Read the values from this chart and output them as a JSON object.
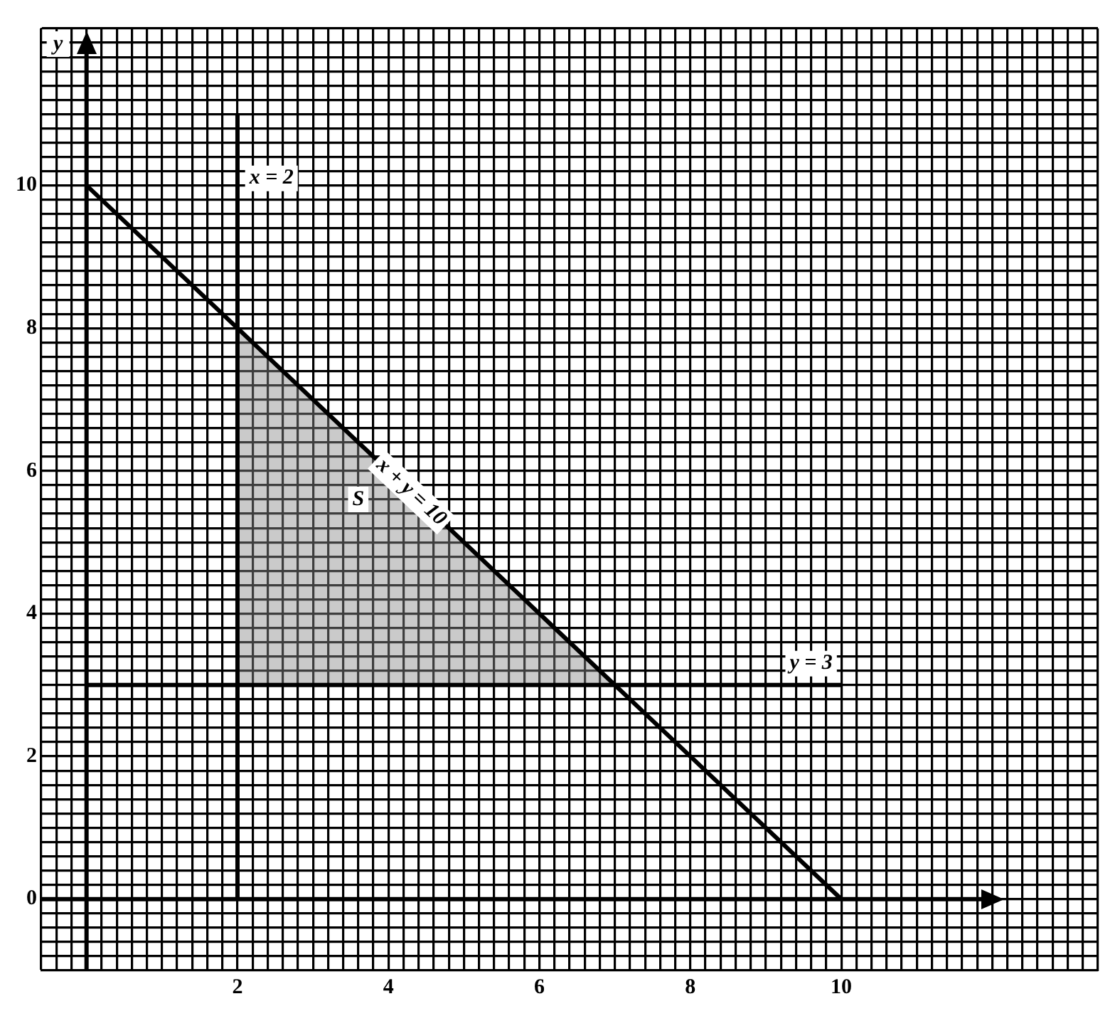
{
  "chart_data": {
    "type": "line",
    "ylabel": "y",
    "series": [
      {
        "color": "#000000",
        "x": [
          2,
          2
        ],
        "values": [
          0,
          11
        ]
      },
      {
        "color": "#000000",
        "x": [
          0,
          10
        ],
        "values": [
          10,
          0
        ]
      },
      {
        "color": "#000000",
        "x": [
          0,
          10
        ],
        "values": [
          3,
          3
        ]
      },
      {
        "type": "area",
        "color": "#8a8a8a",
        "x": [
          2,
          2,
          7,
          2
        ],
        "values": [
          3,
          8,
          3,
          3
        ]
      }
    ],
    "annotations": [
      {
        "text": "x = 2",
        "x": 2.45,
        "y": 10.1
      },
      {
        "text": "x + y = 10",
        "x": 4.3,
        "y": 5.7
      },
      {
        "text": "y = 3",
        "x": 9.6,
        "y": 3.3
      },
      {
        "text": "S",
        "x": 3.6,
        "y": 5.6
      }
    ],
    "xlim": [
      -0.6,
      13.4
    ],
    "ylim": [
      -1,
      12.2
    ],
    "xticks": [
      {
        "value": -0.6,
        "label": null
      },
      {
        "value": -0.4,
        "label": null
      },
      {
        "value": -0.2,
        "label": null
      },
      {
        "value": 0,
        "label": null
      },
      {
        "value": 0.2,
        "label": null
      },
      {
        "value": 0.4,
        "label": null
      },
      {
        "value": 0.6,
        "label": null
      },
      {
        "value": 0.8,
        "label": null
      },
      {
        "value": 1,
        "label": null
      },
      {
        "value": 1.2,
        "label": null
      },
      {
        "value": 1.4,
        "label": null
      },
      {
        "value": 1.6,
        "label": null
      },
      {
        "value": 1.8,
        "label": null
      },
      2,
      {
        "value": 2.2,
        "label": null
      },
      {
        "value": 2.4,
        "label": null
      },
      {
        "value": 2.6,
        "label": null
      },
      {
        "value": 2.8,
        "label": null
      },
      {
        "value": 3,
        "label": null
      },
      {
        "value": 3.2,
        "label": null
      },
      {
        "value": 3.4,
        "label": null
      },
      {
        "value": 3.6,
        "label": null
      },
      {
        "value": 3.8,
        "label": null
      },
      4,
      {
        "value": 4.2,
        "label": null
      },
      {
        "value": 4.4,
        "label": null
      },
      {
        "value": 4.6,
        "label": null
      },
      {
        "value": 4.8,
        "label": null
      },
      {
        "value": 5,
        "label": null
      },
      {
        "value": 5.2,
        "label": null
      },
      {
        "value": 5.4,
        "label": null
      },
      {
        "value": 5.6,
        "label": null
      },
      {
        "value": 5.8,
        "label": null
      },
      6,
      {
        "value": 6.2,
        "label": null
      },
      {
        "value": 6.4,
        "label": null
      },
      {
        "value": 6.6,
        "label": null
      },
      {
        "value": 6.8,
        "label": null
      },
      {
        "value": 7,
        "label": null
      },
      {
        "value": 7.2,
        "label": null
      },
      {
        "value": 7.4,
        "label": null
      },
      {
        "value": 7.6,
        "label": null
      },
      {
        "value": 7.8,
        "label": null
      },
      8,
      {
        "value": 8.2,
        "label": null
      },
      {
        "value": 8.4,
        "label": null
      },
      {
        "value": 8.6,
        "label": null
      },
      {
        "value": 8.8,
        "label": null
      },
      {
        "value": 9,
        "label": null
      },
      {
        "value": 9.2,
        "label": null
      },
      {
        "value": 9.4,
        "label": null
      },
      {
        "value": 9.6,
        "label": null
      },
      {
        "value": 9.8,
        "label": null
      },
      10,
      {
        "value": 10.2,
        "label": null
      },
      {
        "value": 10.4,
        "label": null
      },
      {
        "value": 10.6,
        "label": null
      },
      {
        "value": 10.8,
        "label": null
      },
      {
        "value": 11,
        "label": null
      },
      {
        "value": 11.2,
        "label": null
      },
      {
        "value": 11.4,
        "label": null
      },
      {
        "value": 11.6,
        "label": null
      },
      {
        "value": 11.8,
        "label": null
      },
      {
        "value": 12,
        "label": null
      },
      {
        "value": 12.2,
        "label": null
      },
      {
        "value": 12.4,
        "label": null
      },
      {
        "value": 12.6,
        "label": null
      },
      {
        "value": 12.8,
        "label": null
      },
      {
        "value": 13,
        "label": null
      },
      {
        "value": 13.2,
        "label": null
      },
      {
        "value": 13.4,
        "label": null
      }
    ],
    "yticks": [
      {
        "value": -1,
        "label": null
      },
      {
        "value": -0.8,
        "label": null
      },
      {
        "value": -0.6,
        "label": null
      },
      {
        "value": -0.4,
        "label": null
      },
      {
        "value": -0.2,
        "label": null
      },
      0,
      {
        "value": 0.2,
        "label": null
      },
      {
        "value": 0.4,
        "label": null
      },
      {
        "value": 0.6,
        "label": null
      },
      {
        "value": 0.8,
        "label": null
      },
      {
        "value": 1,
        "label": null
      },
      {
        "value": 1.2,
        "label": null
      },
      {
        "value": 1.4,
        "label": null
      },
      {
        "value": 1.6,
        "label": null
      },
      {
        "value": 1.8,
        "label": null
      },
      2,
      {
        "value": 2.2,
        "label": null
      },
      {
        "value": 2.4,
        "label": null
      },
      {
        "value": 2.6,
        "label": null
      },
      {
        "value": 2.8,
        "label": null
      },
      {
        "value": 3,
        "label": null
      },
      {
        "value": 3.2,
        "label": null
      },
      {
        "value": 3.4,
        "label": null
      },
      {
        "value": 3.6,
        "label": null
      },
      {
        "value": 3.8,
        "label": null
      },
      4,
      {
        "value": 4.2,
        "label": null
      },
      {
        "value": 4.4,
        "label": null
      },
      {
        "value": 4.6,
        "label": null
      },
      {
        "value": 4.8,
        "label": null
      },
      {
        "value": 5,
        "label": null
      },
      {
        "value": 5.2,
        "label": null
      },
      {
        "value": 5.4,
        "label": null
      },
      {
        "value": 5.6,
        "label": null
      },
      {
        "value": 5.8,
        "label": null
      },
      6,
      {
        "value": 6.2,
        "label": null
      },
      {
        "value": 6.4,
        "label": null
      },
      {
        "value": 6.6,
        "label": null
      },
      {
        "value": 6.8,
        "label": null
      },
      {
        "value": 7,
        "label": null
      },
      {
        "value": 7.2,
        "label": null
      },
      {
        "value": 7.4,
        "label": null
      },
      {
        "value": 7.6,
        "label": null
      },
      {
        "value": 7.8,
        "label": null
      },
      8,
      {
        "value": 8.2,
        "label": null
      },
      {
        "value": 8.4,
        "label": null
      },
      {
        "value": 8.6,
        "label": null
      },
      {
        "value": 8.8,
        "label": null
      },
      {
        "value": 9,
        "label": null
      },
      {
        "value": 9.2,
        "label": null
      },
      {
        "value": 9.4,
        "label": null
      },
      {
        "value": 9.6,
        "label": null
      },
      {
        "value": 9.8,
        "label": null
      },
      10,
      {
        "value": 10.2,
        "label": null
      },
      {
        "value": 10.4,
        "label": null
      },
      {
        "value": 10.6,
        "label": null
      },
      {
        "value": 10.8,
        "label": null
      },
      {
        "value": 11,
        "label": null
      },
      {
        "value": 11.2,
        "label": null
      },
      {
        "value": 11.4,
        "label": null
      },
      {
        "value": 11.6,
        "label": null
      },
      {
        "value": 11.8,
        "label": null
      },
      {
        "value": 12,
        "label": null
      },
      {
        "value": 12.2,
        "label": null
      }
    ],
    "grid": true,
    "legend": false,
    "marker": "none",
    "line_style": "solid"
  }
}
